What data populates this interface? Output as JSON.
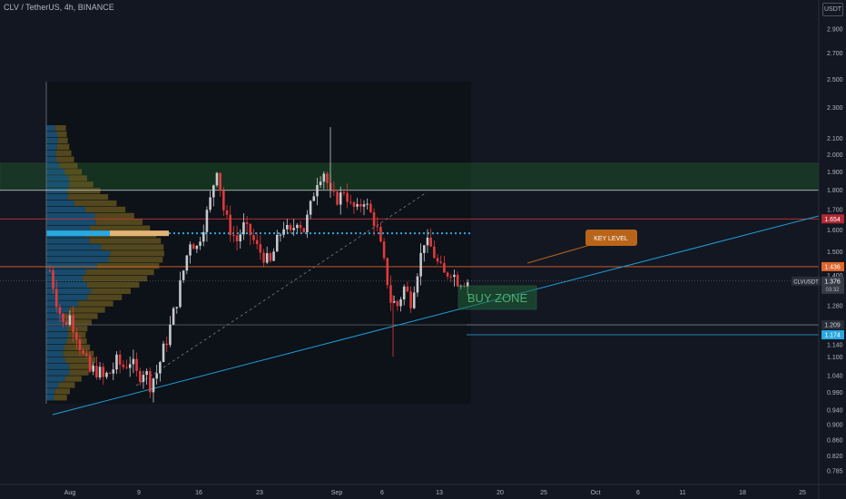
{
  "header": {
    "symbol_title": "CLV / TetherUS, 4h, BINANCE",
    "currency": "USDT"
  },
  "colors": {
    "background": "#131722",
    "up": "#c8c9cc",
    "down": "#e03b3b",
    "trendline": "#1e9fd6",
    "supply_zone": "#1f5a2a",
    "key_level_badge": "#b8651a",
    "buy_zone": "#1f6b3a",
    "volume_profile_up": "#1c5f8a",
    "volume_profile_down": "#6b5a1f",
    "poc": "#29a8e0"
  },
  "annotations": {
    "key_level": "KEY LEVEL",
    "buy_zone": "BUY ZONE"
  },
  "price_badges": {
    "red_level": "1.654",
    "orange_level": "1.436",
    "symbol_label": "CLVUSDT",
    "last_price": "1.376",
    "countdown": "03:32",
    "grey_level": "1.209",
    "blue_level": "1.174"
  },
  "chart_data": {
    "type": "line",
    "title": "CLV / TetherUS, 4h, BINANCE",
    "ylabel": "USDT",
    "log_scale": true,
    "ylim": [
      0.76,
      3.1
    ],
    "y_ticks": [
      "2.900",
      "2.700",
      "2.500",
      "2.300",
      "2.100",
      "2.000",
      "1.900",
      "1.800",
      "1.700",
      "1.600",
      "1.500",
      "1.400",
      "1.280",
      "1.140",
      "1.100",
      "1.040",
      "0.990",
      "0.940",
      "0.900",
      "0.860",
      "0.820",
      "0.785"
    ],
    "x_ticks": [
      "Aug",
      "9",
      "16",
      "23",
      "Sep",
      "6",
      "13",
      "20",
      "25",
      "Oct",
      "6",
      "11",
      "18",
      "25"
    ],
    "grid": false,
    "series": [
      {
        "values_approx_close": [
          1.42,
          1.3,
          1.21,
          1.24,
          1.18,
          1.1,
          1.05,
          1.06,
          1.03,
          1.05,
          1.08,
          1.07,
          1.09,
          1.04,
          1.06,
          1.02,
          1.05,
          1.12,
          1.2,
          1.3,
          1.42,
          1.55,
          1.52,
          1.62,
          1.75,
          1.92,
          1.7,
          1.6,
          1.55,
          1.62,
          1.58,
          1.52,
          1.48,
          1.45,
          1.55,
          1.62,
          1.58,
          1.65,
          1.6,
          1.72,
          1.85,
          1.9,
          1.78,
          1.75,
          1.8,
          1.72,
          1.7,
          1.75,
          1.68,
          1.6,
          1.45,
          1.3,
          1.28,
          1.35,
          1.3,
          1.42,
          1.55,
          1.52,
          1.45,
          1.4,
          1.42,
          1.38,
          1.376
        ]
      }
    ],
    "horizontal_levels": [
      {
        "price": 1.8,
        "color": "#d1d4dc"
      },
      {
        "price": 1.654,
        "color": "#e03b3b"
      },
      {
        "price": 1.436,
        "color": "#e0662b"
      },
      {
        "price": 1.209,
        "color": "#787b86"
      },
      {
        "price": 1.174,
        "color": "#29a8e0"
      },
      {
        "price": 1.585,
        "color": "#29a8e0",
        "style": "dotted"
      }
    ],
    "zones": [
      {
        "label": "",
        "from": 1.8,
        "to": 1.95
      }
    ]
  }
}
